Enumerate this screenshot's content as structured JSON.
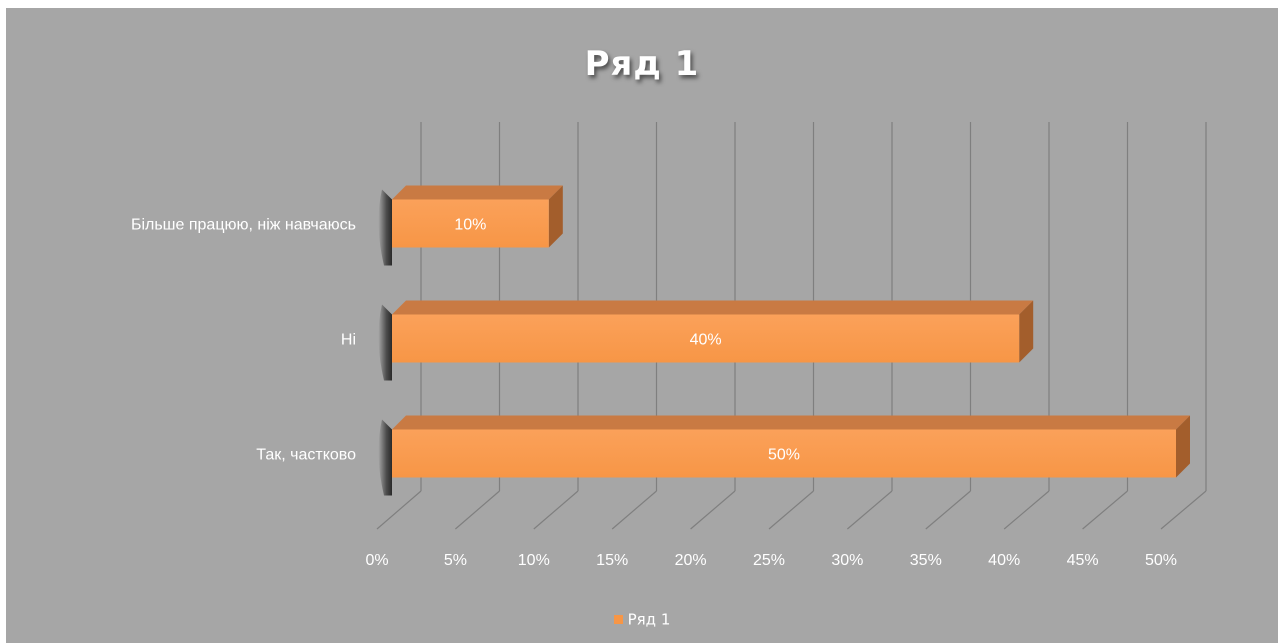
{
  "colors": {
    "background": "#a6a6a6",
    "bar_front": "#f79646",
    "bar_top": "#c97a43",
    "bar_side": "#a35e2c",
    "gridline": "#7f7f7f",
    "label_text": "#ffffff"
  },
  "chart_data": {
    "type": "bar",
    "orientation": "horizontal",
    "style": "3d",
    "title": "Ряд 1",
    "categories": [
      "Так, частково",
      "Ні",
      "Більше працюю, ніж навчаюсь"
    ],
    "series": [
      {
        "name": "Ряд 1",
        "values": [
          50,
          40,
          10
        ],
        "data_labels": [
          "50%",
          "40%",
          "10%"
        ]
      }
    ],
    "xlim": [
      0,
      50
    ],
    "x_ticks": [
      "0%",
      "5%",
      "10%",
      "15%",
      "20%",
      "25%",
      "30%",
      "35%",
      "40%",
      "45%",
      "50%"
    ],
    "grid": true,
    "legend_position": "bottom"
  }
}
